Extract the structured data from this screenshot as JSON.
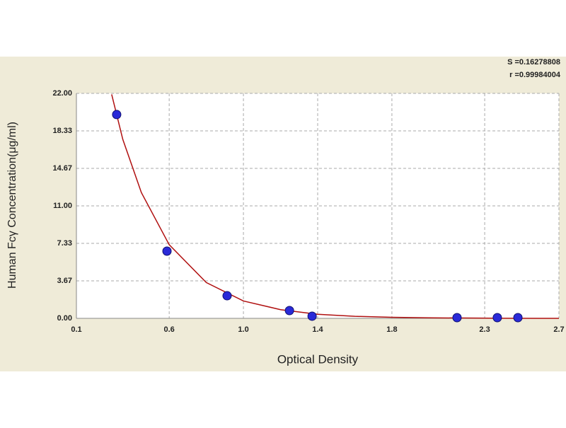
{
  "chart_data": {
    "type": "scatter",
    "xlabel": "Optical Density",
    "ylabel": "Human Fcγ Concentration(μg/ml)",
    "annotations": [
      "S =0.16278808",
      "r =0.99984004"
    ],
    "xlim": [
      0.1,
      2.7
    ],
    "xticks": [
      0.1,
      0.6,
      {
        "value": 1,
        "label": "1.0"
      },
      1.4,
      1.8,
      2.3,
      2.7
    ],
    "ylim": [
      0,
      22
    ],
    "yticks": [
      {
        "value": 0,
        "label": "0.00"
      },
      {
        "value": 3.67,
        "label": "3.67"
      },
      {
        "value": 7.33,
        "label": "7.33"
      },
      {
        "value": 11,
        "label": "11.00"
      },
      {
        "value": 14.67,
        "label": "14.67"
      },
      {
        "value": 18.33,
        "label": "18.33"
      },
      {
        "value": 22,
        "label": "22.00"
      }
    ],
    "grid": true,
    "points": {
      "color": "#2a2ad8",
      "x": [
        0.317,
        0.588,
        0.912,
        1.248,
        1.37,
        2.151,
        2.368,
        2.479
      ],
      "y": [
        19.93,
        6.57,
        2.21,
        0.76,
        0.21,
        0.07,
        0.07,
        0.07
      ]
    },
    "curve": {
      "color": "#b01010",
      "x": [
        0.29,
        0.35,
        0.45,
        0.6,
        0.8,
        1.0,
        1.2,
        1.4,
        1.6,
        1.8,
        2.0,
        2.4,
        2.7
      ],
      "y": [
        21.9,
        17.5,
        12.3,
        7.2,
        3.5,
        1.7,
        0.85,
        0.4,
        0.2,
        0.1,
        0.05,
        0.01,
        0
      ]
    }
  }
}
